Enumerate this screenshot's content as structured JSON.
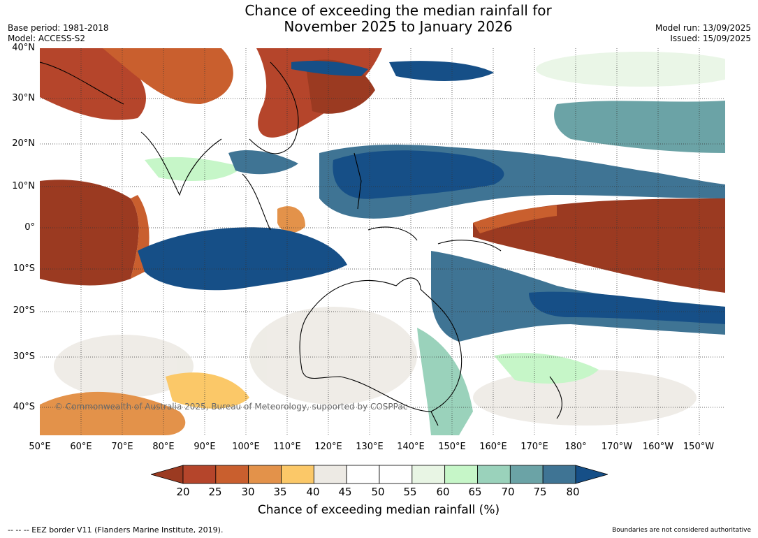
{
  "title_line1": "Chance of exceeding the median rainfall for",
  "title_line2": "November 2025 to January 2026",
  "base_period": "Base period: 1981-2018",
  "model": "Model: ACCESS-S2",
  "model_run": "Model run: 13/09/2025",
  "issued": "Issued: 15/09/2025",
  "lat_labels": [
    "40°N",
    "30°N",
    "20°N",
    "10°N",
    "0°",
    "10°S",
    "20°S",
    "30°S",
    "40°S"
  ],
  "lon_labels": [
    "50°E",
    "60°E",
    "70°E",
    "80°E",
    "90°E",
    "100°E",
    "110°E",
    "120°E",
    "130°E",
    "140°E",
    "150°E",
    "160°E",
    "170°E",
    "180°",
    "170°W",
    "160°W",
    "150°W"
  ],
  "colorbar": {
    "ticks": [
      "20",
      "25",
      "30",
      "35",
      "40",
      "45",
      "50",
      "55",
      "60",
      "65",
      "70",
      "75",
      "80"
    ],
    "colors": [
      "#9b3a21",
      "#b5452b",
      "#c95f2e",
      "#e3924a",
      "#fbc868",
      "#edeae4",
      "#ffffff",
      "#ffffff",
      "#e8f5e4",
      "#c6f6c8",
      "#9ad2bb",
      "#6ba3a6",
      "#3f7494",
      "#164f87"
    ],
    "label": "Chance of exceeding median rainfall (%)"
  },
  "copyright": "© Commonwealth of Australia 2025, Bureau of Meteorology, supported by COSPPac",
  "footer_left": "--  --  -- EEZ border V11 (Flanders Marine Institute, 2019).",
  "footer_right": "Boundaries are not considered authoritative"
}
